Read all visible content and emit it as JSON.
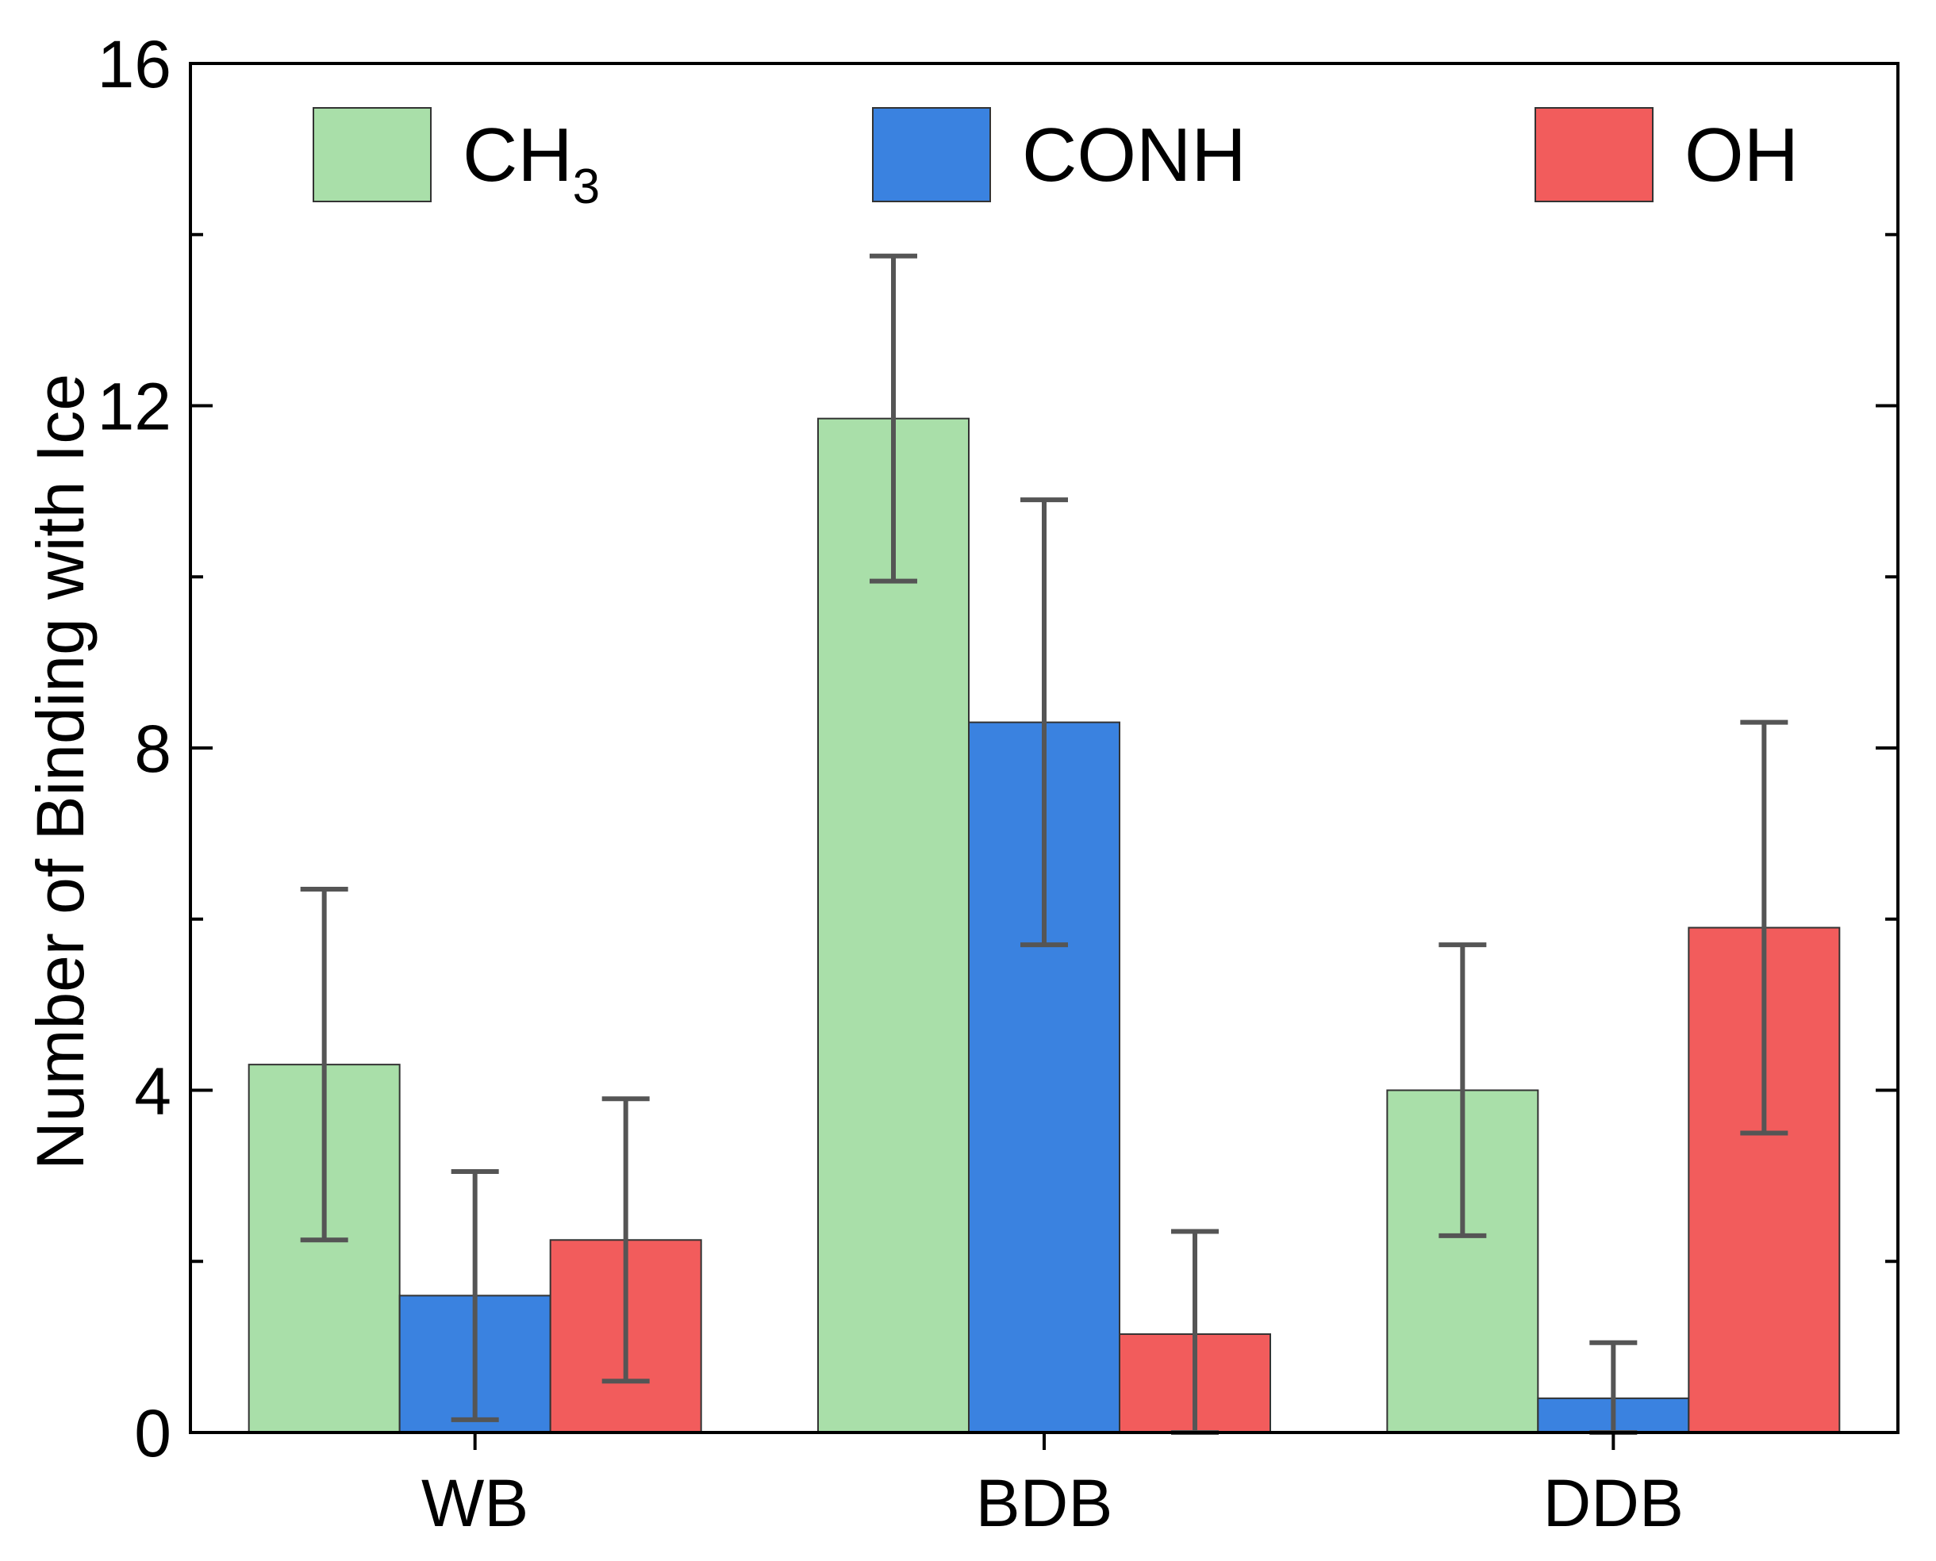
{
  "chart_data": {
    "type": "bar",
    "title": "",
    "xlabel": "",
    "ylabel": "Number of Binding with Ice",
    "ylim": [
      0,
      16
    ],
    "yticks": [
      0,
      4,
      8,
      12,
      16
    ],
    "categories": [
      "WB",
      "BDB",
      "DDB"
    ],
    "legend_position": "top",
    "series": [
      {
        "name": "CH",
        "name_sub": "3",
        "color": "#a9dfa9",
        "values": [
          4.3,
          11.85,
          4.0
        ],
        "errors": [
          2.05,
          1.9,
          1.7
        ]
      },
      {
        "name": "CONH",
        "color": "#3a82e0",
        "values": [
          1.6,
          8.3,
          0.4
        ],
        "errors": [
          1.45,
          2.6,
          0.65
        ]
      },
      {
        "name": "OH",
        "color": "#f25c5c",
        "values": [
          2.25,
          1.15,
          5.9
        ],
        "errors": [
          1.65,
          1.2,
          2.4
        ]
      }
    ]
  }
}
